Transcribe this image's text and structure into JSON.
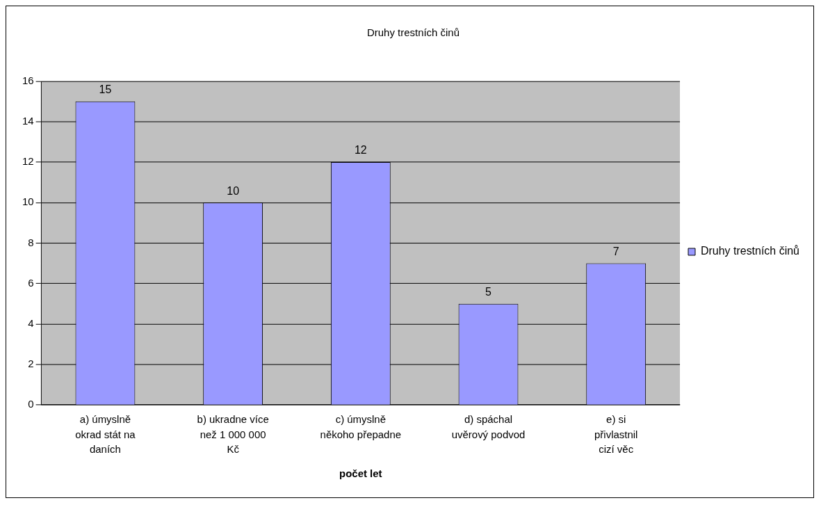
{
  "chart_data": {
    "type": "bar",
    "title": "Druhy trestních činů",
    "xlabel": "počet let",
    "categories": [
      "a) úmyslně okrad stát na daních",
      "b) ukradne více než 1 000 000 Kč",
      "c) úmyslně někoho přepadne",
      "d) spáchal uvěrový podvod",
      "e) si přivlastnil cizí věc"
    ],
    "series": [
      {
        "name": "Druhy trestních činů",
        "color": "#9999ff",
        "values": [
          15,
          10,
          12,
          5,
          7
        ]
      }
    ],
    "ylim": [
      0,
      16
    ],
    "yticks": [
      0,
      2,
      4,
      6,
      8,
      10,
      12,
      14,
      16
    ],
    "grid": "y",
    "legend": "right",
    "data_labels": true
  }
}
